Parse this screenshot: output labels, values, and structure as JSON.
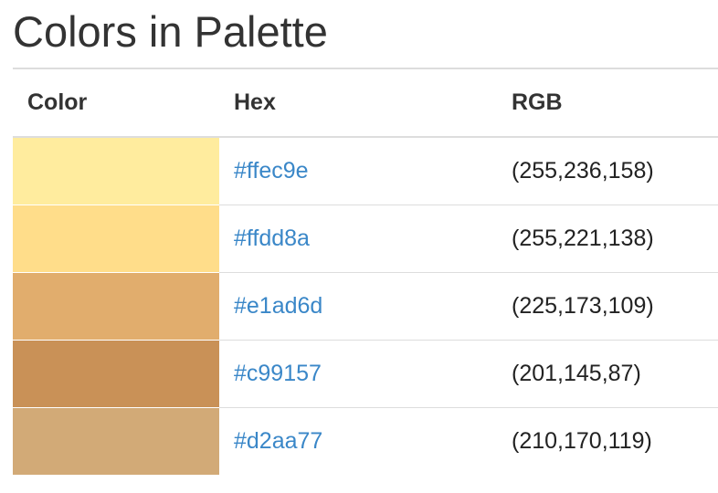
{
  "page": {
    "title": "Colors in Palette"
  },
  "table": {
    "headers": {
      "color": "Color",
      "hex": "Hex",
      "rgb": "RGB"
    },
    "rows": [
      {
        "swatch": "#ffec9e",
        "hex": "#ffec9e",
        "rgb": "(255,236,158)"
      },
      {
        "swatch": "#ffdd8a",
        "hex": "#ffdd8a",
        "rgb": "(255,221,138)"
      },
      {
        "swatch": "#e1ad6d",
        "hex": "#e1ad6d",
        "rgb": "(225,173,109)"
      },
      {
        "swatch": "#c99157",
        "hex": "#c99157",
        "rgb": "(201,145,87)"
      },
      {
        "swatch": "#d2aa77",
        "hex": "#d2aa77",
        "rgb": "(210,170,119)"
      }
    ]
  },
  "colors": {
    "link": "#3a87c8",
    "divider": "#dddddd"
  }
}
